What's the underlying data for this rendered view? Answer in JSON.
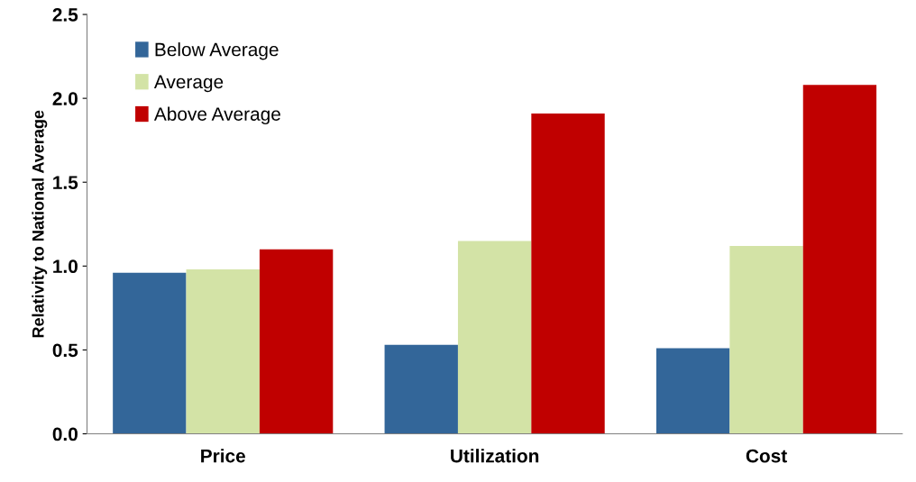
{
  "chart_data": {
    "type": "bar",
    "ylabel": "Relativity to National Average",
    "categories": [
      "Price",
      "Utilization",
      "Cost"
    ],
    "series": [
      {
        "name": "Below Average",
        "color": "#336699",
        "values": [
          0.96,
          0.53,
          0.51
        ]
      },
      {
        "name": "Average",
        "color": "#d3e3a6",
        "values": [
          0.98,
          1.15,
          1.12
        ]
      },
      {
        "name": "Above Average",
        "color": "#c00000",
        "values": [
          1.1,
          1.91,
          2.08
        ]
      }
    ],
    "ylim": [
      0,
      2.5
    ],
    "yticks": [
      {
        "value": 0,
        "label": "0.0"
      },
      {
        "value": 0.5,
        "label": "0.5"
      },
      {
        "value": 1,
        "label": "1.0"
      },
      {
        "value": 1.5,
        "label": "1.5"
      },
      {
        "value": 2,
        "label": "2.0"
      },
      {
        "value": 2.5,
        "label": "2.5"
      }
    ],
    "grid": false,
    "legend": "top left"
  }
}
